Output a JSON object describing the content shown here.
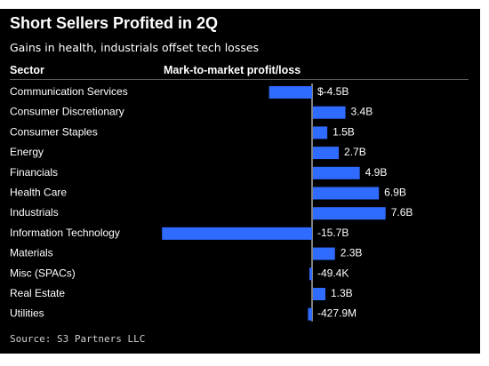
{
  "title": "Short Sellers Profited in 2Q",
  "subtitle": "Gains in health, industrials offset tech losses",
  "headers": {
    "sector": "Sector",
    "value": "Mark-to-market profit/loss"
  },
  "source": "Source: S3 Partners LLC",
  "colors": {
    "background": "#000000",
    "bar": "#2f6bff",
    "text": "#ffffff",
    "zero_line": "#ffffff"
  },
  "chart_data": {
    "type": "bar",
    "orientation": "horizontal",
    "unit": "billion USD",
    "categories": [
      "Communication Services",
      "Consumer Discretionary",
      "Consumer Staples",
      "Energy",
      "Financials",
      "Health Care",
      "Industrials",
      "Information Technology",
      "Materials",
      "Misc (SPACs)",
      "Real Estate",
      "Utilities"
    ],
    "values": [
      -4.5,
      3.4,
      1.5,
      2.7,
      4.9,
      6.9,
      7.6,
      -15.7,
      2.3,
      -4.94e-05,
      1.3,
      -0.4279
    ],
    "data_labels": [
      "$-4.5B",
      "3.4B",
      "1.5B",
      "2.7B",
      "4.9B",
      "6.9B",
      "7.6B",
      "-15.7B",
      "2.3B",
      "-49.4K",
      "1.3B",
      "-427.9M"
    ],
    "grid": false,
    "legend": "none"
  }
}
